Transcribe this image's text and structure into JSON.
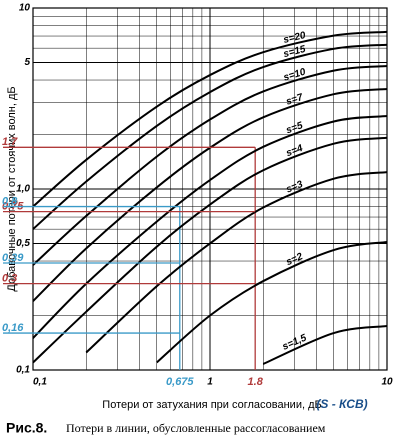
{
  "chart_data": {
    "type": "line",
    "xlabel": "Потери от затухания при согласовании, дБ",
    "ylabel": "Добавочные потери от стоячих волн, дБ",
    "note": "(S - КСВ)",
    "caption_number": "Рис.8.",
    "caption": "Потери в линии, обусловленные рассогласованием",
    "log_x": true,
    "log_y": true,
    "grid": true,
    "xlim": [
      0.1,
      10
    ],
    "ylim": [
      0.1,
      10
    ],
    "xticks": [
      {
        "value": 0.1,
        "label": "0,1"
      },
      1,
      10
    ],
    "yticks": [
      {
        "value": 0.1,
        "label": "0,1"
      },
      {
        "value": 0.5,
        "label": "0,5"
      },
      {
        "value": 1,
        "label": "1,0"
      },
      5,
      10
    ],
    "x": [
      0.1,
      0.2,
      0.5,
      1,
      2,
      5,
      10
    ],
    "series": [
      {
        "name": "s=20",
        "color": "#000000",
        "values": [
          0.8,
          1.45,
          2.85,
          4.26,
          5.7,
          7.04,
          7.38
        ]
      },
      {
        "name": "s=15",
        "color": "#000000",
        "values": [
          0.6,
          1.1,
          2.23,
          3.43,
          4.72,
          5.95,
          6.27
        ]
      },
      {
        "name": "s=10",
        "color": "#000000",
        "values": [
          0.38,
          0.71,
          1.51,
          2.42,
          3.46,
          4.51,
          4.78
        ]
      },
      {
        "name": "s=7",
        "color": "#000000",
        "values": [
          0.24,
          0.47,
          1.02,
          1.69,
          2.49,
          3.34,
          3.57
        ]
      },
      {
        "name": "s=5",
        "color": "#000000",
        "values": [
          0.15,
          0.3,
          0.66,
          1.12,
          1.71,
          2.36,
          2.53
        ]
      },
      {
        "name": "s=4",
        "color": "#000000",
        "values": [
          0.11,
          0.21,
          0.48,
          0.82,
          1.27,
          1.78,
          1.92
        ]
      },
      {
        "name": "s=3",
        "color": "#000000",
        "values": [
          null,
          0.125,
          0.29,
          0.5,
          0.79,
          1.14,
          1.24
        ]
      },
      {
        "name": "s=2",
        "color": "#000000",
        "values": [
          null,
          null,
          0.11,
          0.2,
          0.31,
          0.46,
          0.51
        ]
      },
      {
        "name": "s=1,5",
        "color": "#000000",
        "values": [
          null,
          null,
          null,
          null,
          0.108,
          0.16,
          0.175
        ]
      }
    ],
    "guides": [
      {
        "color": "#b03a3a",
        "x": {
          "value": 1.8,
          "label": "1.8"
        },
        "y": [
          {
            "value": 1.7,
            "label": "1.7"
          },
          {
            "value": 0.75,
            "label": "0.75"
          },
          {
            "value": 0.3,
            "label": "0.3"
          }
        ]
      },
      {
        "color": "#3a9ac8",
        "x": {
          "value": 0.675,
          "label": "0,675"
        },
        "y": [
          {
            "value": 0.8,
            "label": "0,8"
          },
          {
            "value": 0.39,
            "label": "0,39"
          },
          {
            "value": 0.16,
            "label": "0,16"
          }
        ]
      }
    ]
  }
}
